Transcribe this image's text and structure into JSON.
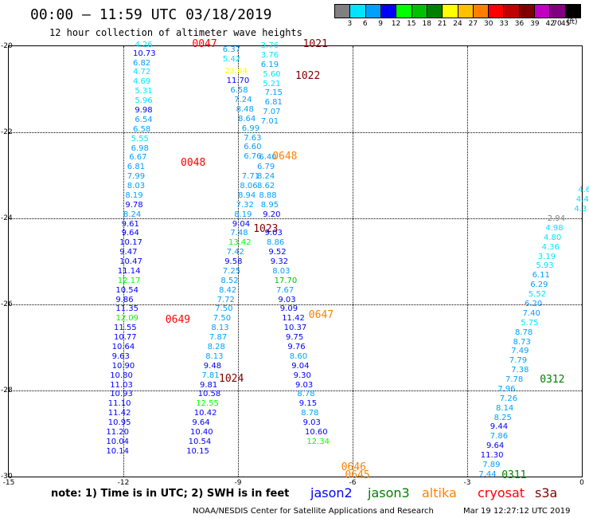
{
  "title": "00:00 – 11:59 UTC 03/18/2019",
  "subtitle": "12 hour collection of altimeter wave heights",
  "legend": {
    "colors": [
      "#808080",
      "#00e5ff",
      "#00a0ff",
      "#0000ff",
      "#00ff00",
      "#00c000",
      "#008000",
      "#ffff00",
      "#ffc000",
      "#ff8000",
      "#ff0000",
      "#c00000",
      "#800000",
      "#c000c0",
      "#800080",
      "#000000"
    ],
    "labels": [
      "3",
      "6",
      "9",
      "12",
      "15",
      "18",
      "21",
      "24",
      "27",
      "30",
      "33",
      "36",
      "39",
      "42",
      "45",
      "70"
    ],
    "unit": "(ft)"
  },
  "axes": {
    "x_ticks": [
      "-15",
      "-12",
      "-9",
      "-6",
      "-3",
      "0"
    ],
    "y_ticks": [
      "-20",
      "-22",
      "-24",
      "-26",
      "-28",
      "-30"
    ]
  },
  "chart_data": {
    "type": "scatter",
    "xlim": [
      -15,
      0
    ],
    "ylim": [
      -30,
      -20
    ],
    "x_label_ticks": [
      -15,
      -12,
      -9,
      -6,
      -3,
      0
    ],
    "y_label_ticks": [
      -20,
      -22,
      -24,
      -26,
      -28,
      -30
    ],
    "tracks": [
      {
        "values": [
          "4.26",
          "10.73",
          "6.82",
          "4.72",
          "4.69",
          "5.31",
          "5.96",
          "9.98",
          "6.54",
          "6.58",
          "5.55",
          "6.98",
          "6.67",
          "6.81",
          "7.99",
          "8.03",
          "8.19",
          "9.78",
          "8.24",
          "9.61",
          "9.64",
          "10.17",
          "9.47",
          "10.47",
          "11.14",
          "12.17",
          "10.54",
          "9.86",
          "11.35",
          "12.09",
          "11.55",
          "10.77",
          "10.64",
          "9.63",
          "10.90",
          "10.80",
          "11.03",
          "10.93",
          "11.10",
          "11.42",
          "10.95",
          "11.20",
          "10.04",
          "10.14"
        ],
        "x": [
          -11.7,
          -11.75,
          -11.75,
          -11.75,
          -11.75,
          -11.7,
          -11.7,
          -11.7,
          -11.7,
          -11.75,
          -11.8,
          -11.8,
          -11.85,
          -11.9,
          -11.9,
          -11.9,
          -11.95,
          -11.95,
          -12.0,
          -12.05,
          -12.05,
          -12.1,
          -12.1,
          -12.1,
          -12.15,
          -12.15,
          -12.2,
          -12.2,
          -12.2,
          -12.2,
          -12.25,
          -12.25,
          -12.3,
          -12.3,
          -12.3,
          -12.35,
          -12.35,
          -12.35,
          -12.4,
          -12.4,
          -12.4,
          -12.45,
          -12.45,
          -12.45
        ],
        "y": [
          -19.98,
          -20.18,
          -20.4,
          -20.62,
          -20.84,
          -21.06,
          -21.28,
          -21.5,
          -21.72,
          -21.94,
          -22.16,
          -22.38,
          -22.6,
          -22.82,
          -23.04,
          -23.26,
          -23.48,
          -23.7,
          -23.92,
          -24.14,
          -24.36,
          -24.58,
          -24.8,
          -25.02,
          -25.24,
          -25.46,
          -25.68,
          -25.9,
          -26.12,
          -26.34,
          -26.56,
          -26.78,
          -27.0,
          -27.22,
          -27.44,
          -27.66,
          -27.88,
          -28.1,
          -28.32,
          -28.54,
          -28.76,
          -28.98,
          -29.2,
          -29.42
        ]
      },
      {
        "values": [
          "6.37",
          "5.42",
          "23.64",
          "11.70",
          "6.58",
          "7.24",
          "8.48",
          "8.64",
          "6.99",
          "7.63",
          "6.60",
          "6.76",
          "7.71",
          "8.06",
          "8.94",
          "7.32",
          "8.19",
          "9.04",
          "7.48",
          "13.42",
          "7.42",
          "9.58",
          "7.25",
          "8.52",
          "8.42",
          "7.72",
          "7.50",
          "7.50",
          "8.13",
          "7.87",
          "8.28",
          "8.13",
          "9.48",
          "7.81",
          "9.81",
          "10.58",
          "12.55",
          "10.42",
          "9.64",
          "10.40",
          "10.54",
          "10.15"
        ],
        "x": [
          -9.4,
          -9.4,
          -9.35,
          -9.3,
          -9.2,
          -9.1,
          -9.05,
          -9.0,
          -8.9,
          -8.85,
          -8.85,
          -8.85,
          -8.9,
          -8.95,
          -9.0,
          -9.05,
          -9.1,
          -9.15,
          -9.2,
          -9.25,
          -9.3,
          -9.35,
          -9.4,
          -9.45,
          -9.5,
          -9.55,
          -9.6,
          -9.65,
          -9.7,
          -9.75,
          -9.8,
          -9.85,
          -9.9,
          -9.95,
          -10.0,
          -10.05,
          -10.1,
          -10.15,
          -10.2,
          -10.25,
          -10.3,
          -10.35
        ],
        "y": [
          -20.1,
          -20.32,
          -20.6,
          -20.82,
          -21.04,
          -21.26,
          -21.48,
          -21.7,
          -21.92,
          -22.14,
          -22.36,
          -22.58,
          -23.04,
          -23.26,
          -23.48,
          -23.7,
          -23.92,
          -24.14,
          -24.36,
          -24.58,
          -24.8,
          -25.02,
          -25.24,
          -25.46,
          -25.68,
          -25.9,
          -26.12,
          -26.34,
          -26.56,
          -26.78,
          -27.0,
          -27.22,
          -27.44,
          -27.66,
          -27.88,
          -28.1,
          -28.32,
          -28.54,
          -28.76,
          -28.98,
          -29.2,
          -29.42
        ]
      },
      {
        "values": [
          "3.76",
          "3.76",
          "6.19",
          "5.60",
          "5.21",
          "7.15",
          "6.81",
          "7.07",
          "7.01",
          "6.40",
          "6.79",
          "8.24",
          "8.62",
          "8.88",
          "8.95",
          "9.20",
          "9.03",
          "8.86",
          "9.52",
          "9.32",
          "8.03",
          "17.70",
          "7.67",
          "9.03",
          "9.09",
          "11.42",
          "10.37",
          "9.75",
          "9.76",
          "8.60",
          "9.04",
          "9.30",
          "9.03",
          "8.78",
          "9.15",
          "8.78",
          "9.03",
          "10.60",
          "12.34"
        ],
        "x": [
          -8.4,
          -8.4,
          -8.4,
          -8.35,
          -8.35,
          -8.3,
          -8.3,
          -8.35,
          -8.4,
          -8.45,
          -8.5,
          -8.5,
          -8.5,
          -8.45,
          -8.4,
          -8.35,
          -8.3,
          -8.25,
          -8.2,
          -8.15,
          -8.1,
          -8.05,
          -8.0,
          -7.95,
          -7.9,
          -7.85,
          -7.8,
          -7.75,
          -7.7,
          -7.65,
          -7.6,
          -7.55,
          -7.5,
          -7.45,
          -7.4,
          -7.35,
          -7.3,
          -7.25,
          -7.2
        ],
        "y": [
          -20.0,
          -20.22,
          -20.44,
          -20.66,
          -20.88,
          -21.1,
          -21.32,
          -21.54,
          -21.76,
          -22.6,
          -22.82,
          -23.04,
          -23.26,
          -23.48,
          -23.7,
          -23.92,
          -24.36,
          -24.58,
          -24.8,
          -25.02,
          -25.24,
          -25.46,
          -25.68,
          -25.9,
          -26.12,
          -26.34,
          -26.56,
          -26.78,
          -27.0,
          -27.22,
          -27.44,
          -27.66,
          -27.88,
          -28.1,
          -28.32,
          -28.54,
          -28.76,
          -28.98,
          -29.2
        ]
      },
      {
        "values": [
          "7.44",
          "7.89",
          "11.30",
          "9.64",
          "7.86",
          "9.44",
          "8.25",
          "8.14",
          "7.26",
          "7.96",
          "7.78",
          "7.38",
          "7.79",
          "7.49",
          "8.73",
          "8.78",
          "5.75",
          "7.40",
          "6.20",
          "5.52",
          "6.29",
          "6.11",
          "5.93",
          "3.19",
          "4.36",
          "4.80",
          "4.98",
          "2.94",
          "4.3",
          "4.4",
          "4.6"
        ],
        "x": [
          -2.7,
          -2.6,
          -2.65,
          -2.5,
          -2.4,
          -2.4,
          -2.3,
          -2.25,
          -2.15,
          -2.2,
          -2.0,
          -1.85,
          -1.9,
          -1.85,
          -1.8,
          -1.75,
          -1.6,
          -1.55,
          -1.5,
          -1.4,
          -1.35,
          -1.3,
          -1.2,
          -1.15,
          -1.05,
          -1.0,
          -0.95,
          -0.9,
          -0.2,
          -0.15,
          -0.1
        ],
        "y": [
          -29.96,
          -29.74,
          -29.52,
          -29.3,
          -29.08,
          -28.86,
          -28.64,
          -28.42,
          -28.2,
          -27.98,
          -27.76,
          -27.54,
          -27.32,
          -27.1,
          -26.88,
          -26.66,
          -26.44,
          -26.22,
          -26.0,
          -25.78,
          -25.56,
          -25.34,
          -25.12,
          -24.9,
          -24.68,
          -24.46,
          -24.24,
          -24.02,
          -23.8,
          -23.58,
          -23.36
        ]
      }
    ],
    "passes": [
      {
        "label": "0047",
        "x": -10.2,
        "y": -19.95,
        "sat": "cryosat"
      },
      {
        "label": "1021",
        "x": -7.3,
        "y": -19.95,
        "sat": "s3a"
      },
      {
        "label": "1022",
        "x": -7.5,
        "y": -20.68,
        "sat": "s3a"
      },
      {
        "label": "0048",
        "x": -10.5,
        "y": -22.7,
        "sat": "cryosat"
      },
      {
        "label": "0648",
        "x": -8.1,
        "y": -22.55,
        "sat": "altika"
      },
      {
        "label": "1023",
        "x": -8.6,
        "y": -24.24,
        "sat": "s3a"
      },
      {
        "label": "0649",
        "x": -10.9,
        "y": -26.36,
        "sat": "cryosat"
      },
      {
        "label": "0647",
        "x": -7.15,
        "y": -26.24,
        "sat": "altika"
      },
      {
        "label": "1024",
        "x": -9.5,
        "y": -27.72,
        "sat": "s3a"
      },
      {
        "label": "0646",
        "x": -6.3,
        "y": -29.78,
        "sat": "altika"
      },
      {
        "label": "0645",
        "x": -6.2,
        "y": -29.96,
        "sat": "altika"
      },
      {
        "label": "0312",
        "x": -1.1,
        "y": -27.74,
        "sat": "jason3"
      },
      {
        "label": "0311",
        "x": -2.1,
        "y": -29.96,
        "sat": "jason3"
      }
    ]
  },
  "sat_colors": {
    "jason2": "#0000ff",
    "jason3": "#008000",
    "altika": "#ff8000",
    "cryosat": "#ff0000",
    "s3a": "#800000"
  },
  "footer": {
    "note": "note: 1) Time is in UTC; 2) SWH is in feet",
    "satellites": [
      "jason2",
      "jason3",
      "altika",
      "cryosat",
      "s3a"
    ],
    "credit": "NOAA/NESDIS Center for Satellite Applications and Research",
    "timestamp": "Mar 19 12:27:12 UTC 2019"
  }
}
